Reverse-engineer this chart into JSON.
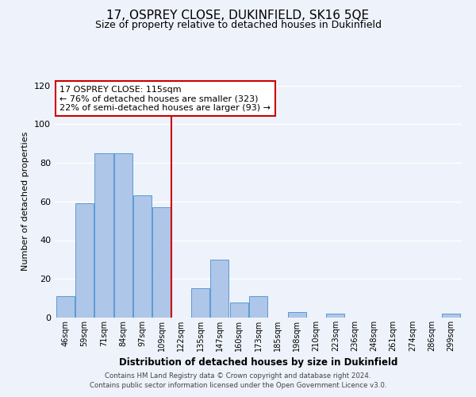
{
  "title": "17, OSPREY CLOSE, DUKINFIELD, SK16 5QE",
  "subtitle": "Size of property relative to detached houses in Dukinfield",
  "xlabel": "Distribution of detached houses by size in Dukinfield",
  "ylabel": "Number of detached properties",
  "bar_labels": [
    "46sqm",
    "59sqm",
    "71sqm",
    "84sqm",
    "97sqm",
    "109sqm",
    "122sqm",
    "135sqm",
    "147sqm",
    "160sqm",
    "173sqm",
    "185sqm",
    "198sqm",
    "210sqm",
    "223sqm",
    "236sqm",
    "248sqm",
    "261sqm",
    "274sqm",
    "286sqm",
    "299sqm"
  ],
  "bar_values": [
    11,
    59,
    85,
    85,
    63,
    57,
    0,
    15,
    30,
    8,
    11,
    0,
    3,
    0,
    2,
    0,
    0,
    0,
    0,
    0,
    2
  ],
  "bar_color": "#aec6e8",
  "bar_edge_color": "#5b9bd5",
  "annotation_line1": "17 OSPREY CLOSE: 115sqm",
  "annotation_line2": "← 76% of detached houses are smaller (323)",
  "annotation_line3": "22% of semi-detached houses are larger (93) →",
  "annotation_box_color": "#ffffff",
  "annotation_box_edge": "#cc0000",
  "vline_color": "#cc0000",
  "ylim": [
    0,
    120
  ],
  "yticks": [
    0,
    20,
    40,
    60,
    80,
    100,
    120
  ],
  "footer_line1": "Contains HM Land Registry data © Crown copyright and database right 2024.",
  "footer_line2": "Contains public sector information licensed under the Open Government Licence v3.0.",
  "background_color": "#eef2fa",
  "grid_color": "#ffffff"
}
